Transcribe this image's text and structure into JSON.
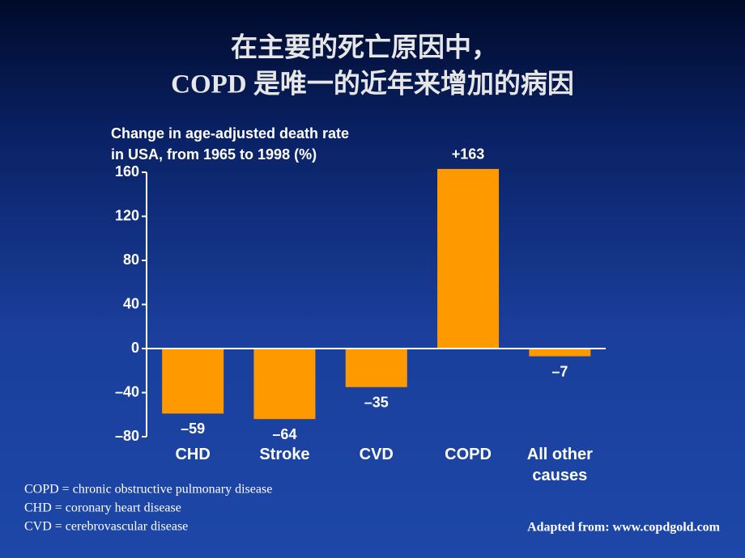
{
  "chart_data": {
    "type": "bar",
    "title": [
      "在主要的死亡原因中，",
      "COPD 是唯一的近年来增加的病因"
    ],
    "ylabel": [
      "Change in age-adjusted death rate",
      "in USA, from 1965 to 1998 (%)"
    ],
    "categories": [
      "CHD",
      "Stroke",
      "CVD",
      "COPD",
      "All other causes"
    ],
    "values": [
      -59,
      -64,
      -35,
      163,
      -7
    ],
    "value_labels": [
      "–59",
      "–64",
      "–35",
      "+163",
      "–7"
    ],
    "color": "#ff9900",
    "ylim": [
      -80,
      160
    ],
    "yticks": [
      {
        "value": -80,
        "label": "–80"
      },
      {
        "value": -40,
        "label": "–40"
      },
      0,
      40,
      80,
      120,
      160
    ],
    "notes": [
      "COPD = chronic obstructive pulmonary disease",
      "CHD = coronary heart disease",
      "CVD = cerebrovascular disease"
    ],
    "source": "Adapted from: www.copdgold.com"
  }
}
